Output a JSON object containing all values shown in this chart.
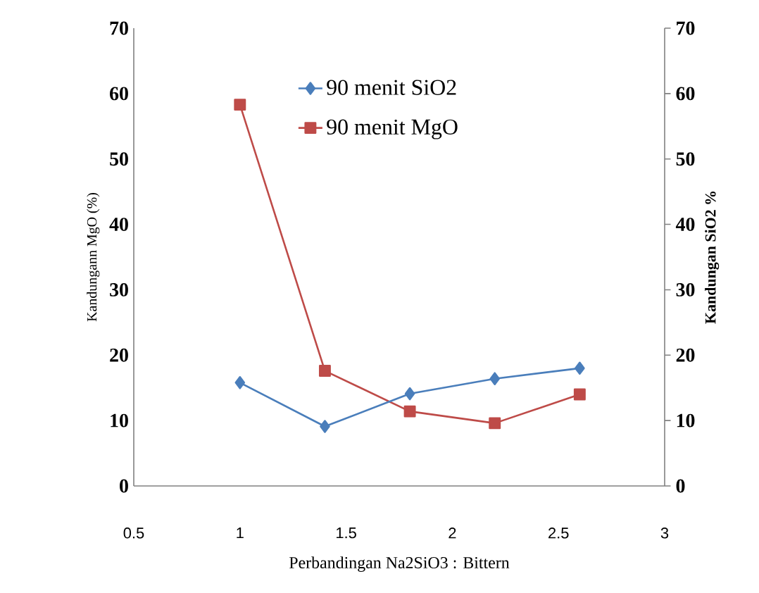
{
  "chart_data": {
    "type": "line",
    "xlabel": "Perbandingan Na2SiO3 :  Bittern",
    "ylabel": "Kandungann MgO (%)",
    "y2label": "Kandungan SiO2 %",
    "x": [
      1,
      1.4,
      1.8,
      2.2,
      2.6
    ],
    "series": [
      {
        "name": "90 menit SiO2",
        "color": "#4a7ebb",
        "values": [
          15.8,
          9.1,
          14.1,
          16.4,
          18.0
        ],
        "axis": "y2",
        "marker": "diamond"
      },
      {
        "name": "90 menit MgO",
        "color": "#be4b48",
        "values": [
          58.3,
          17.6,
          11.4,
          9.6,
          14.0
        ],
        "marker": "square"
      }
    ],
    "xlim": [
      0.5,
      3
    ],
    "xticks": [
      0.5,
      1,
      1.5,
      2,
      2.5,
      3
    ],
    "ylim": [
      0,
      70
    ],
    "yticks": [
      0,
      10,
      20,
      30,
      40,
      50,
      60,
      70
    ],
    "y2lim": [
      0,
      70
    ],
    "y2ticks": [
      0,
      10,
      20,
      30,
      40,
      50,
      60,
      70
    ],
    "grid": false,
    "legend": "top",
    "line_style": "solid"
  }
}
